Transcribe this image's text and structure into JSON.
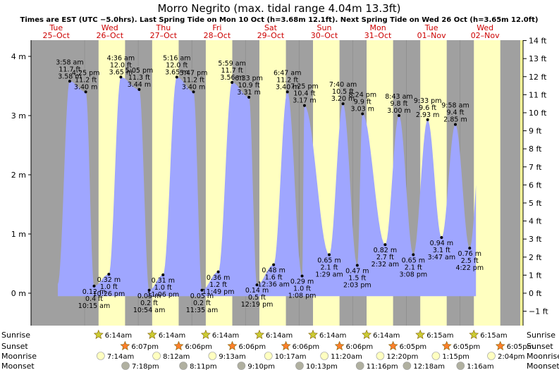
{
  "chart_data": {
    "type": "area",
    "title": "Morro Negrito (max. tidal range 4.04m 13.3ft)",
    "subtitle": "Times are EST (UTC −5.0hrs). Last Spring Tide on Mon 10 Oct (h=3.68m 12.1ft). Next Spring Tide on Wed 26 Oct (h=3.65m 12.0ft)",
    "ylim": [
      -0.35,
      4.35
    ],
    "xlim": [
      0.0,
      9.125
    ],
    "y_axis_left": {
      "ticks": [
        0,
        1,
        2,
        3,
        4
      ],
      "labels": [
        "0 m",
        "1 m",
        "2 m",
        "3 m",
        "4 m"
      ]
    },
    "y_axis_right": {
      "ticks_ft": [
        -1,
        0,
        1,
        2,
        3,
        4,
        5,
        6,
        7,
        8,
        9,
        10,
        11,
        12,
        13,
        14
      ],
      "labels": [
        "−1 ft",
        "0 ft",
        "1 ft",
        "2 ft",
        "3 ft",
        "4 ft",
        "5 ft",
        "6 ft",
        "7 ft",
        "8 ft",
        "9 ft",
        "10 ft",
        "11 ft",
        "12 ft",
        "13 ft",
        "14 ft"
      ]
    },
    "days": [
      {
        "dow": "Tue",
        "date": "25–Oct"
      },
      {
        "dow": "Wed",
        "date": "26–Oct"
      },
      {
        "dow": "Thu",
        "date": "27–Oct"
      },
      {
        "dow": "Fri",
        "date": "28–Oct"
      },
      {
        "dow": "Sat",
        "date": "29–Oct"
      },
      {
        "dow": "Sun",
        "date": "30–Oct"
      },
      {
        "dow": "Mon",
        "date": "31–Oct"
      },
      {
        "dow": "Tue",
        "date": "01–Nov"
      },
      {
        "dow": "Wed",
        "date": "02–Nov"
      }
    ],
    "daylight": [
      {
        "sunrise": 1.2597,
        "sunset": 1.7542
      },
      {
        "sunrise": 2.2597,
        "sunset": 2.7542
      },
      {
        "sunrise": 3.2597,
        "sunset": 3.7542
      },
      {
        "sunrise": 4.2597,
        "sunset": 4.7542
      },
      {
        "sunrise": 5.2597,
        "sunset": 5.7542
      },
      {
        "sunrise": 6.2597,
        "sunset": 6.7535
      },
      {
        "sunrise": 7.2604,
        "sunset": 7.7535
      },
      {
        "sunrise": 8.2604,
        "sunset": 8.7535
      }
    ],
    "tides": [
      {
        "x": 0.7222,
        "m": 3.58,
        "time": "3:58 am",
        "ft": "11.7 ft",
        "type": "high"
      },
      {
        "x": 1.0208,
        "m": 3.4,
        "time": "4:25 pm",
        "ft": "11.2 ft",
        "type": "high"
      },
      {
        "x": 1.1771,
        "m": 0.12,
        "time": "10:15 am",
        "ft": "0.4 ft",
        "type": "low"
      },
      {
        "x": 1.4514,
        "m": 0.32,
        "time": "10:26 pm",
        "ft": "1.0 ft",
        "type": "low"
      },
      {
        "x": 1.675,
        "m": 3.65,
        "time": "4:36 am",
        "ft": "12.0 ft",
        "type": "high"
      },
      {
        "x": 2.0174,
        "m": 3.44,
        "time": "5:05 pm",
        "ft": "11.3 ft",
        "type": "high"
      },
      {
        "x": 2.2042,
        "m": 0.05,
        "time": "10:54 am",
        "ft": "0.2 ft",
        "type": "low"
      },
      {
        "x": 2.4625,
        "m": 0.31,
        "time": "11:06 pm",
        "ft": "1.0 ft",
        "type": "low"
      },
      {
        "x": 2.7194,
        "m": 3.65,
        "time": "5:16 am",
        "ft": "12.0 ft",
        "type": "high"
      },
      {
        "x": 3.0313,
        "m": 3.4,
        "time": "5:47 pm",
        "ft": "11.2 ft",
        "type": "high"
      },
      {
        "x": 3.1882,
        "m": 0.05,
        "time": "11:35 am",
        "ft": "0.2 ft",
        "type": "low"
      },
      {
        "x": 3.4924,
        "m": 0.36,
        "time": "11:49 pm",
        "ft": "1.2 ft",
        "type": "low"
      },
      {
        "x": 3.7493,
        "m": 3.56,
        "time": "5:59 am",
        "ft": "11.7 ft",
        "type": "high"
      },
      {
        "x": 4.0646,
        "m": 3.31,
        "time": "6:33 pm",
        "ft": "10.9 ft",
        "type": "high"
      },
      {
        "x": 4.2146,
        "m": 0.14,
        "time": "12:19 pm",
        "ft": "0.5 ft",
        "type": "low"
      },
      {
        "x": 4.525,
        "m": 0.48,
        "time": "12:36 am",
        "ft": "1.6 ft",
        "type": "low"
      },
      {
        "x": 4.7826,
        "m": 3.4,
        "time": "6:47 am",
        "ft": "11.2 ft",
        "type": "high"
      },
      {
        "x": 5.0563,
        "m": 0.29,
        "time": "1:08 pm",
        "ft": "1.0 ft",
        "type": "low"
      },
      {
        "x": 5.1007,
        "m": 3.17,
        "time": "7:25 pm",
        "ft": "10.4 ft",
        "type": "high"
      },
      {
        "x": 5.5618,
        "m": 0.65,
        "time": "1:29 am",
        "ft": "2.1 ft",
        "type": "low"
      },
      {
        "x": 5.8194,
        "m": 3.2,
        "time": "7:40 am",
        "ft": "10.5 ft",
        "type": "high"
      },
      {
        "x": 6.0854,
        "m": 0.47,
        "time": "2:03 pm",
        "ft": "1.5 ft",
        "type": "low"
      },
      {
        "x": 6.1833,
        "m": 3.03,
        "time": "8:24 pm",
        "ft": "9.9 ft",
        "type": "high"
      },
      {
        "x": 6.6056,
        "m": 0.82,
        "time": "2:32 am",
        "ft": "2.7 ft",
        "type": "low"
      },
      {
        "x": 6.8632,
        "m": 3.0,
        "time": "8:43 am",
        "ft": "9.8 ft",
        "type": "high"
      },
      {
        "x": 7.1306,
        "m": 0.65,
        "time": "3:08 pm",
        "ft": "2.1 ft",
        "type": "low"
      },
      {
        "x": 7.3979,
        "m": 2.93,
        "time": "9:33 pm",
        "ft": "9.6 ft",
        "type": "high"
      },
      {
        "x": 7.6576,
        "m": 0.94,
        "time": "3:47 am",
        "ft": "3.1 ft",
        "type": "low"
      },
      {
        "x": 7.9153,
        "m": 2.85,
        "time": "9:58 am",
        "ft": "9.4 ft",
        "type": "high"
      },
      {
        "x": 8.1819,
        "m": 0.76,
        "time": "4:22 pm",
        "ft": "2.5 ft",
        "type": "low"
      }
    ],
    "sunrise": [
      {
        "x": 1.2597,
        "t": "6:14am"
      },
      {
        "x": 2.2597,
        "t": "6:14am"
      },
      {
        "x": 3.2597,
        "t": "6:14am"
      },
      {
        "x": 4.2597,
        "t": "6:14am"
      },
      {
        "x": 5.2597,
        "t": "6:14am"
      },
      {
        "x": 6.2597,
        "t": "6:14am"
      },
      {
        "x": 7.2604,
        "t": "6:15am"
      },
      {
        "x": 8.2604,
        "t": "6:15am"
      }
    ],
    "sunset": [
      {
        "x": 1.7542,
        "t": "6:07pm"
      },
      {
        "x": 2.7542,
        "t": "6:06pm"
      },
      {
        "x": 3.7542,
        "t": "6:06pm"
      },
      {
        "x": 4.7542,
        "t": "6:06pm"
      },
      {
        "x": 5.7542,
        "t": "6:06pm"
      },
      {
        "x": 6.7535,
        "t": "6:05pm"
      },
      {
        "x": 7.7535,
        "t": "6:05pm"
      },
      {
        "x": 8.7535,
        "t": "6:05pm"
      }
    ],
    "moonrise": [
      {
        "x": 1.3,
        "t": "7:14am"
      },
      {
        "x": 2.3417,
        "t": "8:12am"
      },
      {
        "x": 3.384,
        "t": "9:13am"
      },
      {
        "x": 4.4278,
        "t": "10:17am"
      },
      {
        "x": 5.4722,
        "t": "11:20am"
      },
      {
        "x": 6.5139,
        "t": "12:20pm"
      },
      {
        "x": 7.5521,
        "t": "1:15pm"
      },
      {
        "x": 8.5861,
        "t": "2:04pm"
      }
    ],
    "moonset": [
      {
        "x": 1.7625,
        "t": "7:18pm"
      },
      {
        "x": 2.841,
        "t": "8:11pm"
      },
      {
        "x": 3.9236,
        "t": "9:10pm"
      },
      {
        "x": 5.009,
        "t": "10:13pm"
      },
      {
        "x": 6.1361,
        "t": "11:16pm"
      },
      {
        "x": 7.0125,
        "t": "12:18am"
      },
      {
        "x": 8.0111,
        "t": "1:16am"
      }
    ],
    "row_labels": {
      "sunrise": "Sunrise",
      "sunset": "Sunset",
      "moonrise": "Moonrise",
      "moonset": "Moonset"
    },
    "colors": {
      "night": "#a0a0a0",
      "day": "#ffffc0",
      "water": "#9fa6ff",
      "star_rise": "#cccc33",
      "star_set": "#ff7f2a",
      "moon_rise": "#ffffc0",
      "moon_set": "#b0b0a0"
    }
  }
}
